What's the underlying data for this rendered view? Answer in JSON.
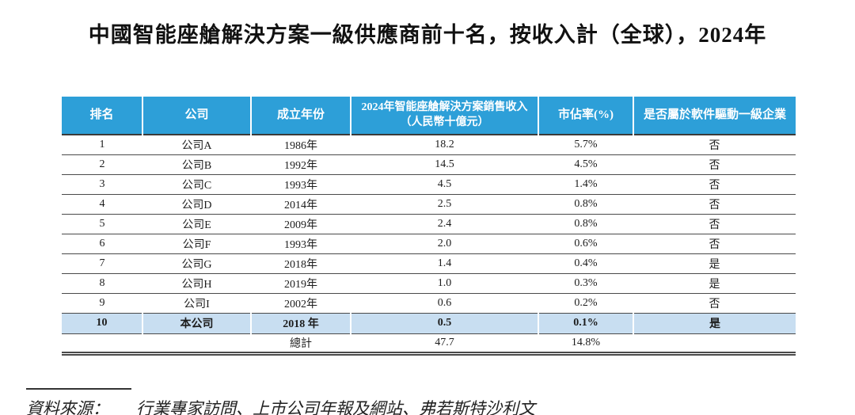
{
  "title": "中國智能座艙解決方案一級供應商前十名，按收入計（全球），2024年",
  "colors": {
    "header_bg": "#2D9FD8",
    "highlight_row_bg": "#C8DEF1",
    "rule_color": "#4a4a4a"
  },
  "table": {
    "headers": {
      "rank": "排名",
      "company": "公司",
      "founded": "成立年份",
      "revenue_line1": "2024年智能座艙解決方案銷售收入",
      "revenue_line2": "（人民幣十億元）",
      "share": "市佔率(%)",
      "software": "是否屬於軟件驅動一級企業"
    },
    "rows": [
      {
        "rank": "1",
        "company": "公司A",
        "founded": "1986年",
        "revenue": "18.2",
        "share": "5.7%",
        "software": "否",
        "highlight": false
      },
      {
        "rank": "2",
        "company": "公司B",
        "founded": "1992年",
        "revenue": "14.5",
        "share": "4.5%",
        "software": "否",
        "highlight": false
      },
      {
        "rank": "3",
        "company": "公司C",
        "founded": "1993年",
        "revenue": "4.5",
        "share": "1.4%",
        "software": "否",
        "highlight": false
      },
      {
        "rank": "4",
        "company": "公司D",
        "founded": "2014年",
        "revenue": "2.5",
        "share": "0.8%",
        "software": "否",
        "highlight": false
      },
      {
        "rank": "5",
        "company": "公司E",
        "founded": "2009年",
        "revenue": "2.4",
        "share": "0.8%",
        "software": "否",
        "highlight": false
      },
      {
        "rank": "6",
        "company": "公司F",
        "founded": "1993年",
        "revenue": "2.0",
        "share": "0.6%",
        "software": "否",
        "highlight": false
      },
      {
        "rank": "7",
        "company": "公司G",
        "founded": "2018年",
        "revenue": "1.4",
        "share": "0.4%",
        "software": "是",
        "highlight": false
      },
      {
        "rank": "8",
        "company": "公司H",
        "founded": "2019年",
        "revenue": "1.0",
        "share": "0.3%",
        "software": "是",
        "highlight": false
      },
      {
        "rank": "9",
        "company": "公司I",
        "founded": "2002年",
        "revenue": "0.6",
        "share": "0.2%",
        "software": "否",
        "highlight": false
      },
      {
        "rank": "10",
        "company": "本公司",
        "founded": "2018 年",
        "revenue": "0.5",
        "share": "0.1%",
        "software": "是",
        "highlight": true
      }
    ],
    "total": {
      "label": "總計",
      "revenue": "47.7",
      "share": "14.8%"
    }
  },
  "source": {
    "label": "資料來源：",
    "text": "行業專家訪問、上市公司年報及網站、弗若斯特沙利文"
  }
}
